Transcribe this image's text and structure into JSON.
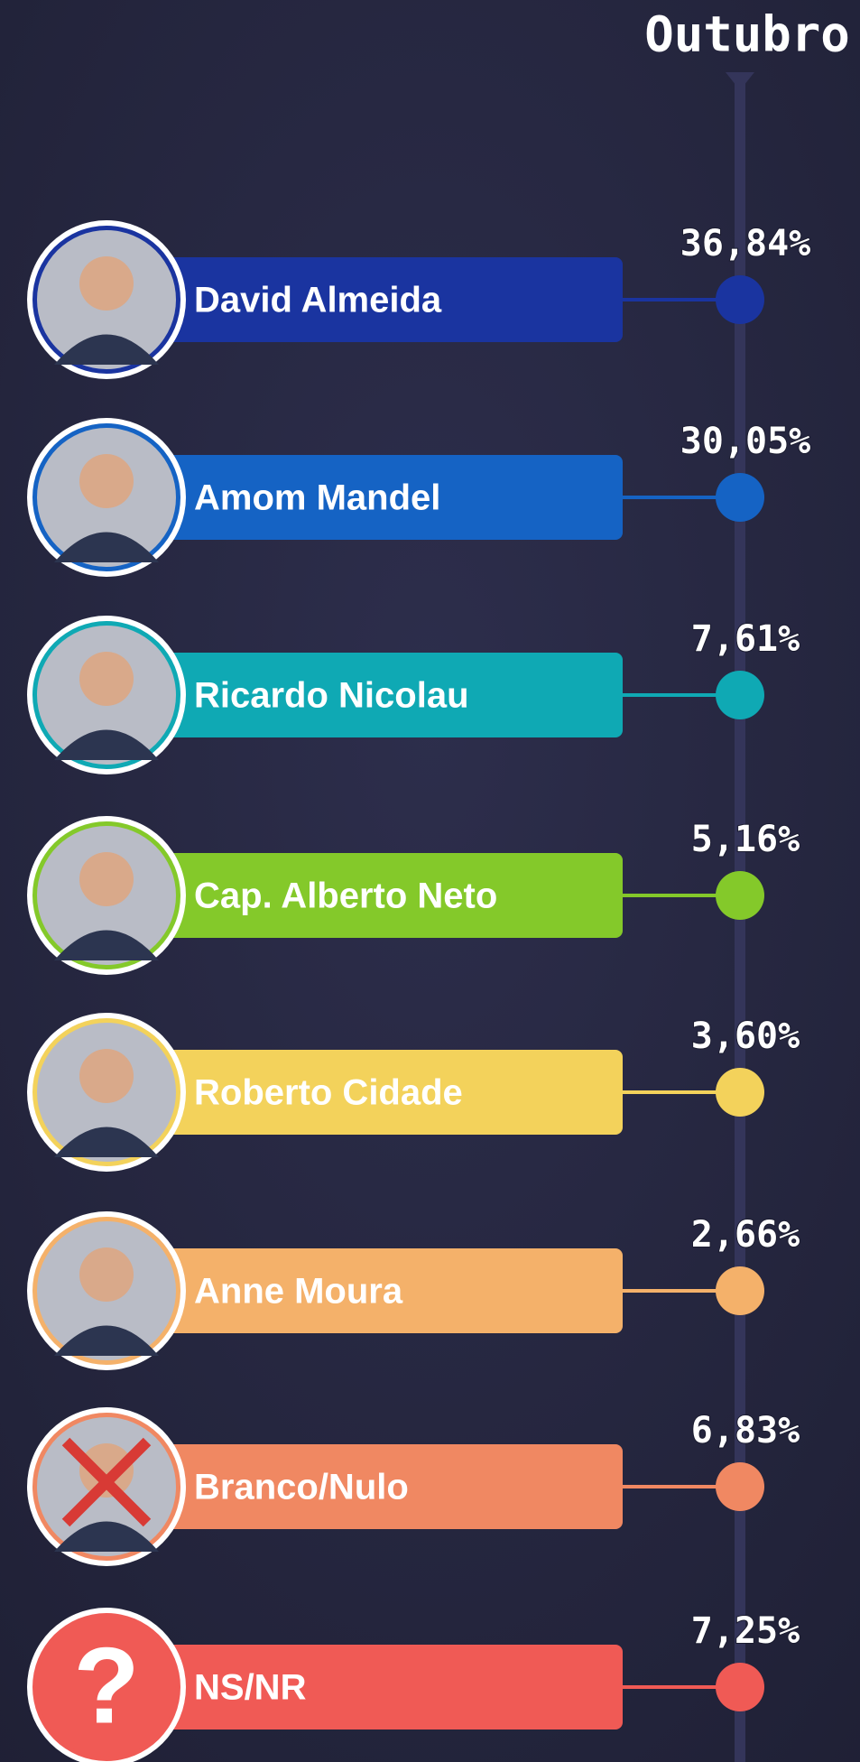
{
  "header": {
    "title": "Outubro"
  },
  "candidates": [
    {
      "name": "David Almeida",
      "percent": "36,84%",
      "color": "#1a34a0"
    },
    {
      "name": "Amom Mandel",
      "percent": "30,05%",
      "color": "#1563c4"
    },
    {
      "name": "Ricardo Nicolau",
      "percent": "7,61%",
      "color": "#0fa9b4"
    },
    {
      "name": "Cap. Alberto Neto",
      "percent": "5,16%",
      "color": "#84c92a"
    },
    {
      "name": "Roberto Cidade",
      "percent": "3,60%",
      "color": "#f3d25b"
    },
    {
      "name": "Anne Moura",
      "percent": "2,66%",
      "color": "#f4b16a"
    },
    {
      "name": "Branco/Nulo",
      "percent": "6,83%",
      "color": "#f08862"
    },
    {
      "name": "NS/NR",
      "percent": "7,25%",
      "color": "#f05a55",
      "icon": "?"
    }
  ]
}
